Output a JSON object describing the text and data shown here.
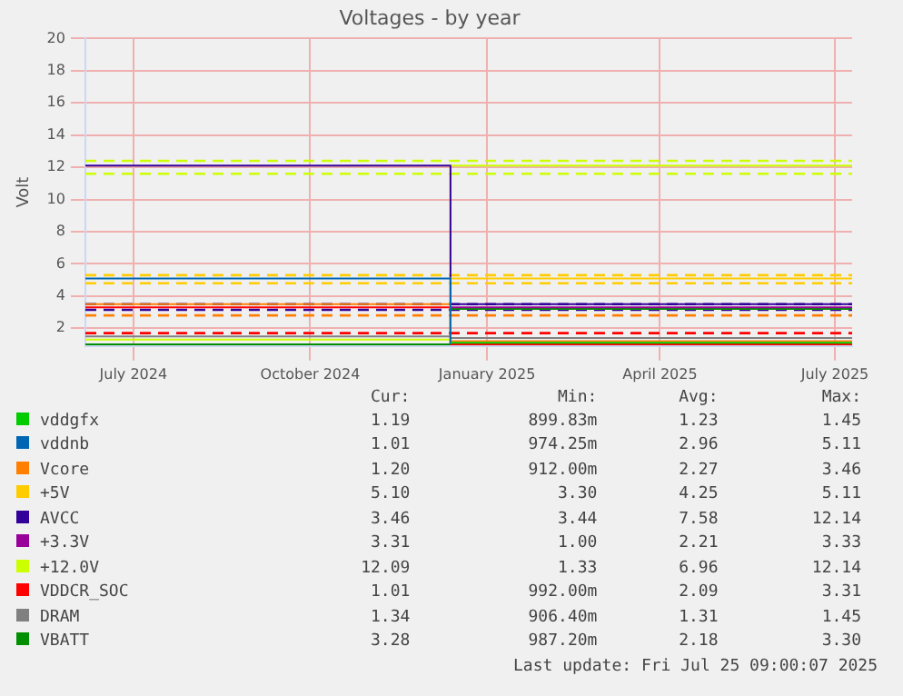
{
  "chart_data": {
    "type": "step",
    "title": "Voltages - by year",
    "ylabel": "Volt",
    "x": [
      "2024-06-06",
      "2024-12-13",
      "2025-07-10"
    ],
    "xlim": [
      "2024-06-06",
      "2025-07-10"
    ],
    "xticks": [
      {
        "value": "2024-07-01",
        "label": "July 2024"
      },
      {
        "value": "2024-10-01",
        "label": "October 2024"
      },
      {
        "value": "2025-01-01",
        "label": "January 2025"
      },
      {
        "value": "2025-04-01",
        "label": "April 2025"
      },
      {
        "value": "2025-07-01",
        "label": "July 2025"
      }
    ],
    "ylim": [
      0.9,
      20
    ],
    "yticks": [
      2,
      4,
      6,
      8,
      10,
      12,
      14,
      16,
      18,
      20
    ],
    "grid": true,
    "legend": "bottom",
    "marker": "none",
    "line_style": "solid",
    "series": [
      {
        "name": "vddgfx",
        "color": "#00cc00",
        "values": [
          null,
          1.1,
          1.1
        ]
      },
      {
        "name": "vddnb",
        "color": "#0066b3",
        "values": [
          5.1,
          1.0,
          null
        ]
      },
      {
        "name": "Vcore",
        "color": "#ff8000",
        "values": [
          3.5,
          1.2,
          1.2
        ]
      },
      {
        "name": "+5V",
        "color": "#ffcc00",
        "values": [
          null,
          5.1,
          5.1
        ]
      },
      {
        "name": "AVCC",
        "color": "#330099",
        "values": [
          12.1,
          3.5,
          3.5
        ]
      },
      {
        "name": "+3.3V",
        "color": "#990099",
        "values": [
          null,
          3.3,
          3.3
        ]
      },
      {
        "name": "+12.0V",
        "color": "#ccff00",
        "values": [
          1.3,
          12.1,
          12.1
        ]
      },
      {
        "name": "VDDCR_SOC",
        "color": "#ff0000",
        "values": [
          3.3,
          1.0,
          1.0
        ]
      },
      {
        "name": "DRAM",
        "color": "#808080",
        "values": [
          1.5,
          1.4,
          1.4
        ]
      },
      {
        "name": "VBATT",
        "color": "#008f00",
        "values": [
          1.0,
          3.2,
          3.2
        ]
      }
    ],
    "ref_lines": [
      {
        "axis": "y",
        "value": 12.4,
        "color": "#ccff00",
        "line_style": "dashed"
      },
      {
        "axis": "y",
        "value": 11.6,
        "color": "#ccff00",
        "line_style": "dashed"
      },
      {
        "axis": "y",
        "value": 5.3,
        "color": "#ffcc00",
        "line_style": "dashed"
      },
      {
        "axis": "y",
        "value": 4.8,
        "color": "#ffcc00",
        "line_style": "dashed"
      },
      {
        "axis": "y",
        "value": 3.5,
        "color": "#330099",
        "line_style": "dashed"
      },
      {
        "axis": "y",
        "value": 3.15,
        "color": "#330099",
        "line_style": "dashed"
      },
      {
        "axis": "y",
        "value": 2.8,
        "color": "#ff8000",
        "line_style": "dashed"
      },
      {
        "axis": "y",
        "value": 1.7,
        "color": "#ff0000",
        "line_style": "dashed"
      }
    ],
    "annotations": [
      "Cur:",
      "Min:",
      "Avg:",
      "Max:",
      "1.19",
      "899.83m",
      "1.23",
      "1.45",
      "1.01",
      "974.25m",
      "2.96",
      "5.11",
      "1.20",
      "912.00m",
      "2.27",
      "3.46",
      "5.10",
      "3.30",
      "4.25",
      "5.11",
      "3.46",
      "3.44",
      "7.58",
      "12.14",
      "3.31",
      "1.00",
      "2.21",
      "3.33",
      "12.09",
      "1.33",
      "6.96",
      "12.14",
      "1.01",
      "992.00m",
      "2.09",
      "3.31",
      "1.34",
      "906.40m",
      "1.31",
      "1.45",
      "3.28",
      "987.20m",
      "2.18",
      "3.30",
      "Last update: Fri Jul 25 09:00:07 2025"
    ]
  }
}
